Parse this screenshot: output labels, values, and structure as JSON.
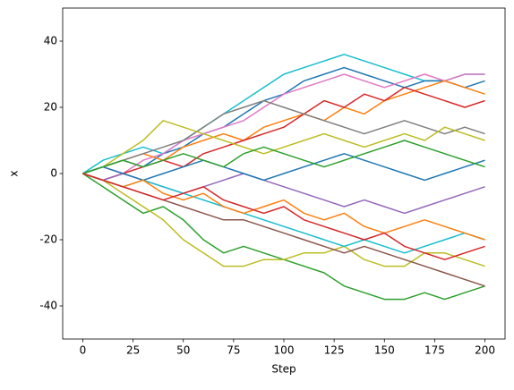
{
  "chart_data": {
    "type": "line",
    "x_label": "Step",
    "y_label": "x",
    "x": [
      0,
      10,
      20,
      30,
      40,
      50,
      60,
      70,
      80,
      90,
      100,
      110,
      120,
      130,
      140,
      150,
      160,
      170,
      180,
      190,
      200
    ],
    "series": [
      {
        "color": "#17becf",
        "values": [
          0,
          4,
          6,
          8,
          6,
          10,
          14,
          18,
          22,
          26,
          30,
          32,
          34,
          36,
          34,
          32,
          30,
          28,
          28,
          30,
          30
        ]
      },
      {
        "color": "#1f77b4",
        "values": [
          0,
          2,
          4,
          2,
          6,
          8,
          12,
          14,
          18,
          22,
          24,
          28,
          30,
          32,
          30,
          28,
          26,
          28,
          28,
          26,
          28
        ]
      },
      {
        "color": "#e377c2",
        "values": [
          0,
          2,
          0,
          4,
          6,
          10,
          12,
          14,
          16,
          20,
          24,
          26,
          28,
          30,
          28,
          26,
          28,
          30,
          28,
          30,
          30
        ]
      },
      {
        "color": "#2ca02c",
        "values": [
          0,
          -4,
          -8,
          -12,
          -10,
          -14,
          -20,
          -24,
          -22,
          -24,
          -26,
          -28,
          -30,
          -34,
          -36,
          -38,
          -38,
          -36,
          -38,
          -36,
          -34
        ]
      },
      {
        "color": "#bcbd22",
        "values": [
          0,
          -2,
          -6,
          -10,
          -14,
          -20,
          -24,
          -28,
          -28,
          -26,
          -26,
          -24,
          -24,
          -22,
          -26,
          -28,
          -28,
          -24,
          -24,
          -26,
          -28
        ]
      },
      {
        "color": "#8c564b",
        "values": [
          0,
          -2,
          -4,
          -6,
          -8,
          -10,
          -12,
          -14,
          -14,
          -16,
          -18,
          -20,
          -22,
          -24,
          -22,
          -24,
          -26,
          -28,
          -30,
          -32,
          -34
        ]
      },
      {
        "color": "#ff7f0e",
        "values": [
          0,
          2,
          4,
          6,
          4,
          8,
          10,
          12,
          10,
          14,
          16,
          18,
          16,
          20,
          18,
          22,
          24,
          26,
          28,
          26,
          24
        ]
      },
      {
        "color": "#d62728",
        "values": [
          0,
          -2,
          0,
          2,
          4,
          2,
          6,
          8,
          10,
          12,
          14,
          18,
          22,
          20,
          24,
          22,
          26,
          24,
          22,
          20,
          22
        ]
      },
      {
        "color": "#7f7f7f",
        "values": [
          0,
          2,
          4,
          6,
          8,
          10,
          14,
          18,
          20,
          22,
          20,
          18,
          16,
          14,
          12,
          14,
          16,
          14,
          12,
          14,
          12
        ]
      },
      {
        "color": "#9467bd",
        "values": [
          0,
          -2,
          0,
          -2,
          -4,
          -6,
          -4,
          -2,
          0,
          -2,
          -4,
          -6,
          -8,
          -10,
          -8,
          -10,
          -12,
          -10,
          -8,
          -6,
          -4
        ]
      },
      {
        "color": "#bcbd22",
        "values": [
          0,
          2,
          6,
          10,
          16,
          14,
          12,
          10,
          8,
          6,
          8,
          10,
          12,
          10,
          8,
          10,
          12,
          10,
          14,
          12,
          10
        ]
      },
      {
        "color": "#17becf",
        "values": [
          0,
          -2,
          -4,
          -2,
          -4,
          -6,
          -8,
          -10,
          -12,
          -14,
          -16,
          -18,
          -20,
          -22,
          -20,
          -22,
          -24,
          -22,
          -20,
          -18,
          -20
        ]
      },
      {
        "color": "#1f77b4",
        "values": [
          0,
          2,
          0,
          -2,
          0,
          2,
          4,
          2,
          0,
          -2,
          0,
          2,
          4,
          6,
          4,
          2,
          0,
          -2,
          0,
          2,
          4
        ]
      },
      {
        "color": "#ff7f0e",
        "values": [
          0,
          -2,
          -4,
          -2,
          -6,
          -8,
          -6,
          -10,
          -12,
          -10,
          -8,
          -12,
          -14,
          -12,
          -16,
          -18,
          -16,
          -14,
          -16,
          -18,
          -20
        ]
      },
      {
        "color": "#2ca02c",
        "values": [
          0,
          2,
          4,
          2,
          4,
          6,
          4,
          2,
          6,
          8,
          6,
          4,
          2,
          4,
          6,
          8,
          10,
          8,
          6,
          4,
          2
        ]
      },
      {
        "color": "#d62728",
        "values": [
          0,
          -2,
          -4,
          -6,
          -8,
          -6,
          -4,
          -8,
          -10,
          -12,
          -10,
          -14,
          -16,
          -18,
          -20,
          -18,
          -22,
          -24,
          -26,
          -24,
          -22
        ]
      }
    ],
    "xlim": [
      -10,
      210
    ],
    "xticks": [
      0,
      25,
      50,
      75,
      100,
      125,
      150,
      175,
      200
    ],
    "ylim": [
      -50,
      50
    ],
    "yticks": [
      -40,
      -20,
      0,
      20,
      40
    ],
    "grid": false
  }
}
